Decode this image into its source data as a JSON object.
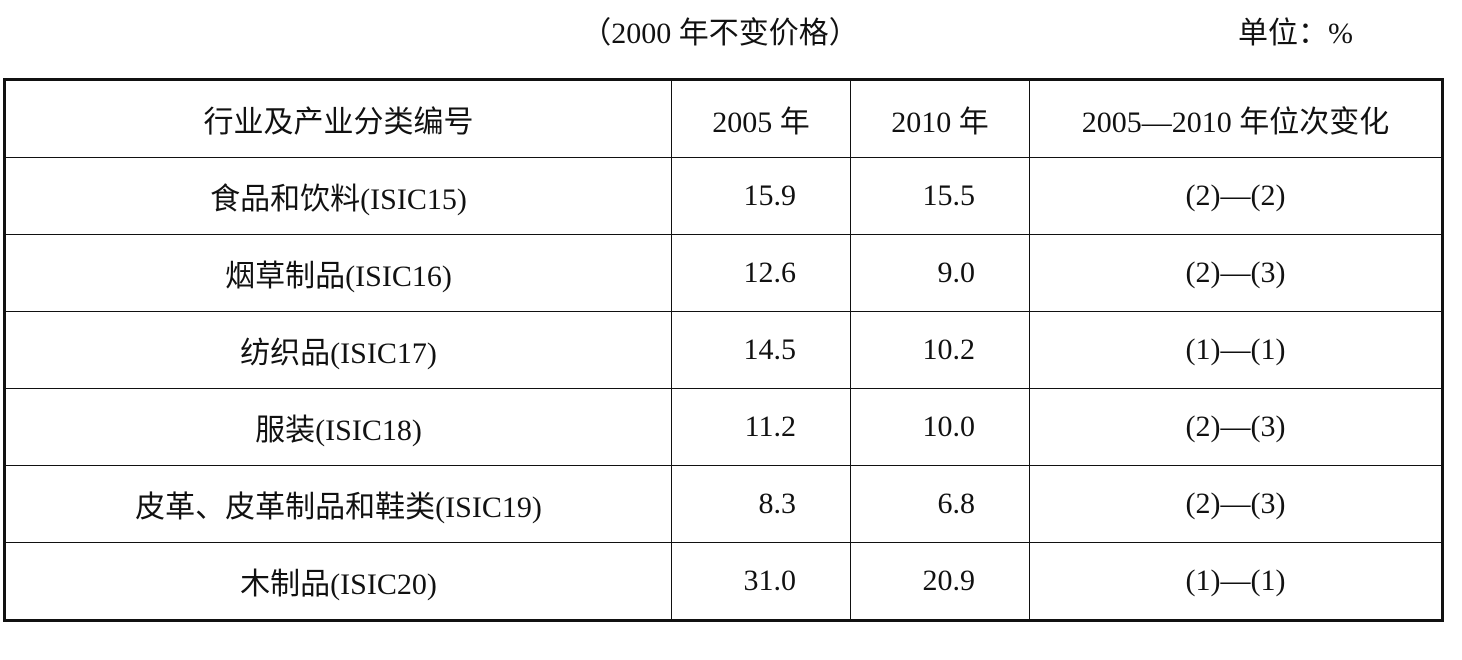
{
  "header": {
    "title": "（2000 年不变价格）",
    "unit": "单位：%"
  },
  "table": {
    "columns": [
      "行业及产业分类编号",
      "2005 年",
      "2010 年",
      "2005—2010 年位次变化"
    ],
    "rows": [
      [
        "食品和饮料(ISIC15)",
        "15.9",
        "15.5",
        "(2)—(2)"
      ],
      [
        "烟草制品(ISIC16)",
        "12.6",
        "9.0",
        "(2)—(3)"
      ],
      [
        "纺织品(ISIC17)",
        "14.5",
        "10.2",
        "(1)—(1)"
      ],
      [
        "服装(ISIC18)",
        "11.2",
        "10.0",
        "(2)—(3)"
      ],
      [
        "皮革、皮革制品和鞋类(ISIC19)",
        "8.3",
        "6.8",
        "(2)—(3)"
      ],
      [
        "木制品(ISIC20)",
        "31.0",
        "20.9",
        "(1)—(1)"
      ]
    ]
  }
}
